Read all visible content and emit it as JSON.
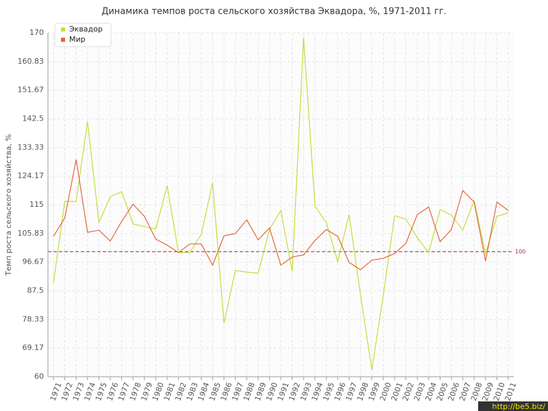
{
  "chart_data": {
    "type": "line",
    "title": "Динамика темпов роста сельского хозяйства Эквадора, %, 1971-2011 гг.",
    "y_label": "Темп роста сельского хозяйства, %",
    "categories": [
      "1971",
      "1972",
      "1973",
      "1974",
      "1975",
      "1976",
      "1977",
      "1978",
      "1979",
      "1980",
      "1981",
      "1982",
      "1983",
      "1984",
      "1985",
      "1986",
      "1987",
      "1988",
      "1989",
      "1990",
      "1991",
      "1992",
      "1993",
      "1994",
      "1995",
      "1996",
      "1997",
      "1998",
      "1999",
      "2000",
      "2001",
      "2002",
      "2003",
      "2004",
      "2005",
      "2006",
      "2007",
      "2008",
      "2009",
      "2010",
      "2011"
    ],
    "series": [
      {
        "name": "Эквадор",
        "color": "#c2dc3c",
        "values": [
          90.0,
          116.1,
          116.1,
          141.7,
          109.3,
          117.6,
          119.2,
          108.9,
          108.0,
          107.3,
          121.1,
          99.7,
          99.7,
          105.6,
          122.0,
          77.1,
          94.0,
          93.5,
          93.1,
          107.1,
          113.2,
          93.7,
          168.5,
          114.6,
          109.3,
          96.8,
          111.9,
          86.3,
          62.2,
          85.9,
          111.5,
          110.4,
          104.5,
          99.7,
          113.5,
          111.7,
          106.9,
          116.3,
          99.4,
          111.3,
          112.4
        ]
      },
      {
        "name": "Мир",
        "color": "#e0653a",
        "values": [
          104.9,
          110.8,
          129.5,
          106.2,
          106.9,
          103.4,
          109.7,
          115.2,
          111.3,
          104.0,
          102.1,
          99.7,
          102.5,
          102.5,
          95.7,
          105.1,
          105.8,
          110.2,
          103.8,
          107.6,
          95.7,
          98.3,
          99.0,
          103.6,
          107.1,
          104.9,
          96.6,
          94.2,
          97.3,
          97.9,
          99.4,
          102.7,
          111.9,
          114.3,
          103.2,
          107.1,
          119.6,
          115.9,
          97.0,
          115.9,
          113.2
        ]
      }
    ],
    "ylim": [
      60,
      170
    ],
    "yticks": [
      60,
      69.17,
      78.33,
      87.5,
      96.67,
      105.83,
      115,
      124.17,
      133.33,
      142.5,
      151.67,
      160.83,
      170
    ],
    "reference_line": {
      "value": 100,
      "label": "100",
      "color": "#a0303a"
    },
    "grid": true,
    "legend": "top-left",
    "watermark": "http://be5.biz/"
  }
}
